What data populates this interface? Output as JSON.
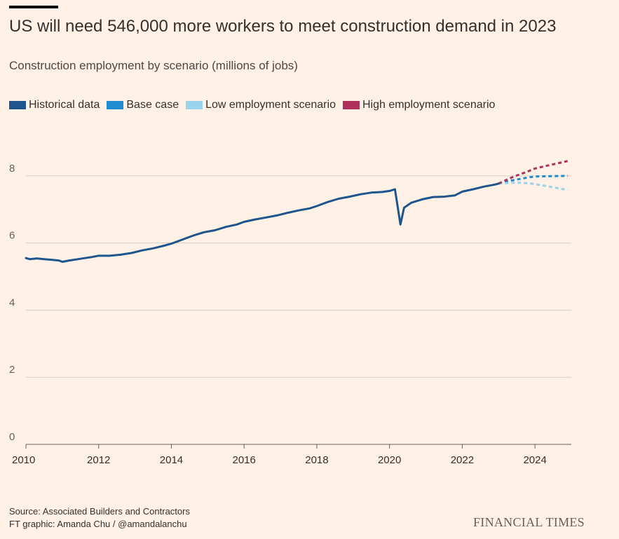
{
  "header": {
    "title": "US will need 546,000 more workers to meet construction demand in 2023",
    "subtitle": "Construction employment by scenario (millions of jobs)"
  },
  "legend": [
    {
      "label": "Historical data",
      "color": "#1e558c"
    },
    {
      "label": "Base case",
      "color": "#1f8bd0"
    },
    {
      "label": "Low employment scenario",
      "color": "#99d4ec"
    },
    {
      "label": "High employment scenario",
      "color": "#b0305c"
    }
  ],
  "footer": {
    "source": "Source: Associated Builders and Contractors",
    "credit": "FT graphic: Amanda Chu / @amandalanchu",
    "brand": "FINANCIAL TIMES"
  },
  "chart_data": {
    "type": "line",
    "title": "US will need 546,000 more workers to meet construction demand in 2023",
    "subtitle": "Construction employment by scenario (millions of jobs)",
    "xlim": [
      2010,
      2025
    ],
    "ylim": [
      0,
      9
    ],
    "yticks": [
      0,
      2,
      4,
      6,
      8
    ],
    "xticks": [
      2010,
      2012,
      2014,
      2016,
      2018,
      2020,
      2022,
      2024
    ],
    "grid": true,
    "legend_position": "top-left",
    "series": [
      {
        "name": "Historical data",
        "color": "#1e558c",
        "style": "solid",
        "x": [
          2010.0,
          2010.1,
          2010.3,
          2010.5,
          2010.7,
          2010.9,
          2011.0,
          2011.2,
          2011.5,
          2011.8,
          2012.0,
          2012.3,
          2012.6,
          2012.9,
          2013.2,
          2013.5,
          2013.8,
          2014.0,
          2014.3,
          2014.6,
          2014.9,
          2015.2,
          2015.5,
          2015.8,
          2016.0,
          2016.3,
          2016.6,
          2016.9,
          2017.2,
          2017.5,
          2017.8,
          2018.0,
          2018.3,
          2018.6,
          2018.9,
          2019.2,
          2019.5,
          2019.8,
          2020.0,
          2020.15,
          2020.3,
          2020.4,
          2020.6,
          2020.9,
          2021.2,
          2021.5,
          2021.8,
          2022.0,
          2022.3,
          2022.6,
          2022.9,
          2023.0
        ],
        "y": [
          5.55,
          5.52,
          5.54,
          5.52,
          5.5,
          5.48,
          5.44,
          5.48,
          5.53,
          5.58,
          5.62,
          5.62,
          5.65,
          5.7,
          5.78,
          5.84,
          5.92,
          5.98,
          6.1,
          6.22,
          6.32,
          6.38,
          6.48,
          6.55,
          6.63,
          6.7,
          6.76,
          6.82,
          6.9,
          6.97,
          7.03,
          7.1,
          7.22,
          7.32,
          7.38,
          7.45,
          7.5,
          7.52,
          7.55,
          7.6,
          6.55,
          7.05,
          7.2,
          7.3,
          7.37,
          7.38,
          7.42,
          7.53,
          7.6,
          7.68,
          7.74,
          7.77
        ]
      },
      {
        "name": "Base case",
        "color": "#1f8bd0",
        "style": "dashed",
        "x": [
          2023.0,
          2023.4,
          2023.8,
          2024.0,
          2024.4,
          2024.9
        ],
        "y": [
          7.77,
          7.87,
          7.95,
          7.98,
          7.99,
          8.0
        ]
      },
      {
        "name": "Low employment scenario",
        "color": "#99d4ec",
        "style": "dashed",
        "x": [
          2023.0,
          2023.5,
          2023.9,
          2024.3,
          2024.9
        ],
        "y": [
          7.77,
          7.8,
          7.77,
          7.7,
          7.58
        ]
      },
      {
        "name": "High employment scenario",
        "color": "#b0305c",
        "style": "dashed",
        "x": [
          2023.0,
          2023.4,
          2023.8,
          2024.0,
          2024.4,
          2024.9
        ],
        "y": [
          7.77,
          7.97,
          8.13,
          8.22,
          8.32,
          8.44
        ]
      }
    ]
  }
}
